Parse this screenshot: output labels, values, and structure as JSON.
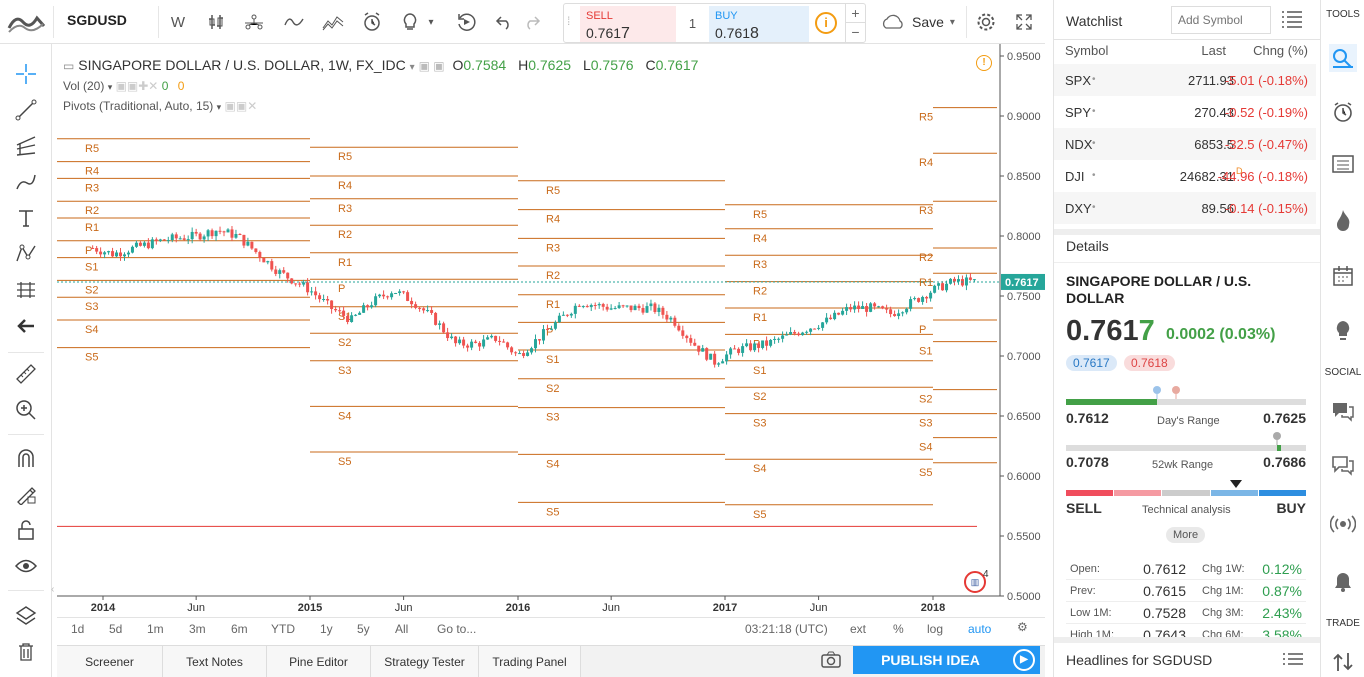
{
  "toolbar": {
    "symbol": "SGDUSD",
    "interval": "W",
    "save_label": "Save",
    "icons": [
      "logo-icon",
      "bars-icon",
      "indicators-icon",
      "line-chart-icon",
      "templates-icon",
      "alert-icon",
      "ideas-icon",
      "replay-icon",
      "undo-icon",
      "redo-icon",
      "cloud-icon",
      "settings-icon",
      "fullscreen-icon"
    ]
  },
  "trade": {
    "sell_label": "SELL",
    "sell_price": "0.7617",
    "buy_label": "BUY",
    "buy_price": "0.7618",
    "quantity": "1"
  },
  "chart": {
    "title": "SINGAPORE DOLLAR / U.S. DOLLAR, 1W, FX_IDC",
    "ohlc": {
      "o_label": "O",
      "o": "0.7584",
      "h_label": "H",
      "h": "0.7625",
      "l_label": "L",
      "l": "0.7576",
      "c_label": "C",
      "c": "0.7617"
    },
    "vol_label": "Vol (20)",
    "vol_a": "0",
    "vol_b": "0",
    "pivots_label": "Pivots (Traditional, Auto, 15)",
    "price_ticks": [
      "0.9500",
      "0.9000",
      "0.8500",
      "0.8000",
      "0.7500",
      "0.7000",
      "0.6500",
      "0.6000",
      "0.5500",
      "0.5000"
    ],
    "current_price": "0.7617",
    "time_ticks": [
      {
        "label": "2014",
        "bold": true
      },
      {
        "label": "Jun",
        "bold": false
      },
      {
        "label": "2015",
        "bold": true
      },
      {
        "label": "Jun",
        "bold": false
      },
      {
        "label": "2016",
        "bold": true
      },
      {
        "label": "Jun",
        "bold": false
      },
      {
        "label": "2017",
        "bold": true
      },
      {
        "label": "Jun",
        "bold": false
      },
      {
        "label": "2018",
        "bold": true
      }
    ],
    "pivot_labels": [
      "R5",
      "R4",
      "R3",
      "R2",
      "R1",
      "P",
      "S1",
      "S2",
      "S3",
      "S4",
      "S5"
    ],
    "badge": "4"
  },
  "chart_data": {
    "type": "candlestick",
    "title": "SINGAPORE DOLLAR / U.S. DOLLAR, 1W, FX_IDC",
    "ylim": [
      0.5,
      0.96
    ],
    "series": [
      {
        "name": "SGDUSD",
        "close_path": [
          [
            2013.95,
            0.79
          ],
          [
            2014.05,
            0.785
          ],
          [
            2014.15,
            0.79
          ],
          [
            2014.3,
            0.797
          ],
          [
            2014.45,
            0.8
          ],
          [
            2014.55,
            0.805
          ],
          [
            2014.65,
            0.8
          ],
          [
            2014.75,
            0.785
          ],
          [
            2014.85,
            0.77
          ],
          [
            2015.0,
            0.755
          ],
          [
            2015.1,
            0.74
          ],
          [
            2015.2,
            0.73
          ],
          [
            2015.3,
            0.745
          ],
          [
            2015.4,
            0.755
          ],
          [
            2015.5,
            0.745
          ],
          [
            2015.6,
            0.73
          ],
          [
            2015.7,
            0.71
          ],
          [
            2015.8,
            0.71
          ],
          [
            2015.9,
            0.715
          ],
          [
            2016.0,
            0.7
          ],
          [
            2016.1,
            0.715
          ],
          [
            2016.2,
            0.73
          ],
          [
            2016.3,
            0.745
          ],
          [
            2016.45,
            0.74
          ],
          [
            2016.55,
            0.74
          ],
          [
            2016.65,
            0.74
          ],
          [
            2016.75,
            0.73
          ],
          [
            2016.85,
            0.71
          ],
          [
            2016.95,
            0.695
          ],
          [
            2017.05,
            0.705
          ],
          [
            2017.2,
            0.71
          ],
          [
            2017.35,
            0.72
          ],
          [
            2017.5,
            0.73
          ],
          [
            2017.6,
            0.74
          ],
          [
            2017.7,
            0.74
          ],
          [
            2017.8,
            0.735
          ],
          [
            2017.9,
            0.745
          ],
          [
            2018.0,
            0.755
          ],
          [
            2018.1,
            0.762
          ],
          [
            2018.2,
            0.762
          ]
        ]
      }
    ],
    "pivots": [
      {
        "period": "2014",
        "levels": {
          "R5": 0.881,
          "R4": 0.862,
          "R3": 0.848,
          "R2": 0.829,
          "R1": 0.815,
          "P": 0.796,
          "S1": 0.782,
          "S2": 0.763,
          "S3": 0.749,
          "S4": 0.73,
          "S5": 0.707
        }
      },
      {
        "period": "2015",
        "levels": {
          "R5": 0.874,
          "R4": 0.85,
          "R3": 0.831,
          "R2": 0.809,
          "R1": 0.786,
          "P": 0.764,
          "S1": 0.741,
          "S2": 0.719,
          "S3": 0.696,
          "S4": 0.658,
          "S5": 0.62
        }
      },
      {
        "period": "2016",
        "levels": {
          "R5": 0.846,
          "R4": 0.822,
          "R3": 0.798,
          "R2": 0.775,
          "R1": 0.751,
          "P": 0.728,
          "S1": 0.705,
          "S2": 0.681,
          "S3": 0.657,
          "S4": 0.618,
          "S5": 0.578
        }
      },
      {
        "period": "2017",
        "levels": {
          "R5": 0.826,
          "R4": 0.806,
          "R3": 0.784,
          "R2": 0.762,
          "R1": 0.74,
          "P": 0.718,
          "S1": 0.696,
          "S2": 0.674,
          "S3": 0.652,
          "S4": 0.614,
          "S5": 0.576
        }
      },
      {
        "period": "2018",
        "levels": {
          "R5": 0.907,
          "R4": 0.869,
          "R3": 0.829,
          "R2": 0.79,
          "R1": 0.769,
          "P": 0.73,
          "S1": 0.712,
          "S2": 0.672,
          "S3": 0.652,
          "S4": 0.632,
          "S5": 0.611
        }
      }
    ]
  },
  "timebar": {
    "ranges": [
      "1d",
      "5d",
      "1m",
      "3m",
      "6m",
      "YTD",
      "1y",
      "5y",
      "All"
    ],
    "goto": "Go to...",
    "clock": "03:21:18 (UTC)",
    "ext": "ext",
    "pct": "%",
    "log": "log",
    "auto": "auto"
  },
  "bottom": {
    "tabs": [
      "Screener",
      "Text Notes",
      "Pine Editor",
      "Strategy Tester",
      "Trading Panel"
    ],
    "publish": "PUBLISH IDEA"
  },
  "watchlist": {
    "title": "Watchlist",
    "add_placeholder": "Add Symbol",
    "cols": [
      "Symbol",
      "Last",
      "Chng (%)"
    ],
    "rows": [
      {
        "symbol": "SPX",
        "last": "2711.93",
        "chg": "-5.01 (-0.18%)"
      },
      {
        "symbol": "SPY",
        "last": "270.43",
        "chg": "-0.52 (-0.19%)"
      },
      {
        "symbol": "NDX",
        "last": "6853.5",
        "chg": "-32.5 (-0.47%)"
      },
      {
        "symbol": "DJI",
        "last": "24682.31",
        "chg": "-44.96 (-0.18%)",
        "flag": "D"
      },
      {
        "symbol": "DXY",
        "last": "89.56",
        "chg": "-0.14 (-0.15%)"
      }
    ]
  },
  "details": {
    "title": "Details",
    "name": "SINGAPORE DOLLAR / U.S. DOLLAR",
    "price": "0.7617",
    "change": "0.0002 (0.03%)",
    "bid": "0.7617",
    "ask": "0.7618",
    "day_low": "0.7612",
    "day_high": "0.7625",
    "day_label": "Day's Range",
    "day_fill": 0.38,
    "wk_low": "0.7078",
    "wk_high": "0.7686",
    "wk_label": "52wk Range",
    "wk_fill": 0.88,
    "sell": "SELL",
    "buy": "BUY",
    "ta_label": "Technical analysis",
    "more": "More",
    "stats": [
      {
        "k": "Open:",
        "v": "0.7612",
        "ck": "Chg 1W:",
        "cv": "0.12%"
      },
      {
        "k": "Prev:",
        "v": "0.7615",
        "ck": "Chg 1M:",
        "cv": "0.87%"
      },
      {
        "k": "Low 1M:",
        "v": "0.7528",
        "ck": "Chg 3M:",
        "cv": "2.43%"
      },
      {
        "k": "High 1M:",
        "v": "0.7643",
        "ck": "Chg 6M:",
        "cv": "3.58%"
      }
    ],
    "headlines": "Headlines for SGDUSD"
  },
  "sidebar": {
    "tools": "TOOLS",
    "social": "SOCIAL",
    "trade": "TRADE"
  },
  "colors": {
    "up": "#26a69a",
    "down": "#ef5350",
    "pivot": "#c96a1a",
    "accent": "#2196f3"
  }
}
